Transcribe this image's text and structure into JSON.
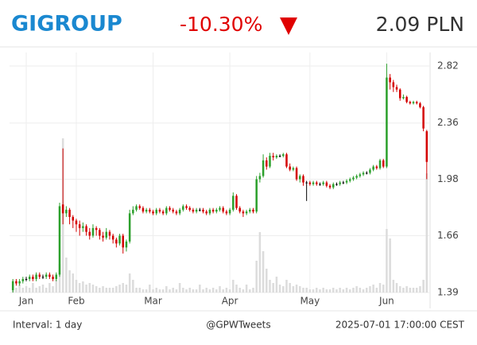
{
  "chart_data": {
    "type": "candlestick",
    "title": "GIGROUP",
    "change": "-10.30%",
    "price": "2.09 PLN",
    "interval": "Interval: 1 day",
    "source": "@GPWTweets",
    "timestamp": "2025-07-01 17:00:00 CEST",
    "log_scale": true,
    "grid": true,
    "up_color": "#2ca02c",
    "down_color": "#d40000",
    "flat_color": "#000000",
    "volume_color": "#dcdcdc",
    "xlim": [
      -1,
      125
    ],
    "xticks": [
      {
        "value": 4,
        "label": "Jan"
      },
      {
        "value": 19,
        "label": "Feb"
      },
      {
        "value": 42,
        "label": "Mar"
      },
      {
        "value": 65,
        "label": "Apr"
      },
      {
        "value": 89,
        "label": "May"
      },
      {
        "value": 112,
        "label": "Jun"
      }
    ],
    "ylim": [
      1.39,
      2.82
    ],
    "yticks": [
      1.39,
      1.66,
      1.98,
      2.36,
      2.82
    ],
    "volume_lim": [
      0,
      100
    ],
    "open": [
      1.4,
      1.44,
      1.43,
      1.44,
      1.45,
      1.45,
      1.46,
      1.45,
      1.47,
      1.46,
      1.46,
      1.47,
      1.46,
      1.45,
      1.47,
      1.83,
      1.78,
      1.8,
      1.76,
      1.74,
      1.72,
      1.7,
      1.71,
      1.68,
      1.66,
      1.7,
      1.69,
      1.66,
      1.65,
      1.68,
      1.66,
      1.64,
      1.62,
      1.66,
      1.6,
      1.63,
      1.78,
      1.8,
      1.82,
      1.81,
      1.79,
      1.8,
      1.79,
      1.78,
      1.8,
      1.79,
      1.78,
      1.81,
      1.8,
      1.79,
      1.78,
      1.8,
      1.82,
      1.81,
      1.8,
      1.79,
      1.8,
      1.8,
      1.79,
      1.78,
      1.8,
      1.79,
      1.8,
      1.81,
      1.79,
      1.78,
      1.8,
      1.88,
      1.81,
      1.79,
      1.78,
      1.79,
      1.8,
      1.79,
      1.98,
      2.0,
      2.1,
      2.06,
      2.13,
      2.12,
      2.13,
      2.13,
      2.14,
      2.06,
      2.04,
      2.05,
      1.98,
      2.0,
      1.96,
      1.96,
      1.95,
      1.96,
      1.95,
      1.95,
      1.96,
      1.94,
      1.93,
      1.95,
      1.95,
      1.96,
      1.96,
      1.97,
      1.98,
      1.99,
      2.0,
      2.01,
      2.02,
      2.02,
      2.04,
      2.06,
      2.05,
      2.1,
      2.06,
      2.72,
      2.68,
      2.64,
      2.62,
      2.55,
      2.56,
      2.52,
      2.51,
      2.52,
      2.51,
      2.48,
      2.3
    ],
    "high": [
      1.45,
      1.45,
      1.45,
      1.46,
      1.46,
      1.47,
      1.47,
      1.48,
      1.48,
      1.47,
      1.48,
      1.48,
      1.47,
      1.48,
      1.84,
      2.18,
      1.82,
      1.81,
      1.77,
      1.75,
      1.74,
      1.73,
      1.72,
      1.7,
      1.72,
      1.71,
      1.7,
      1.68,
      1.7,
      1.69,
      1.67,
      1.65,
      1.67,
      1.67,
      1.64,
      1.8,
      1.82,
      1.83,
      1.83,
      1.82,
      1.81,
      1.81,
      1.8,
      1.81,
      1.81,
      1.8,
      1.82,
      1.82,
      1.81,
      1.8,
      1.81,
      1.83,
      1.83,
      1.82,
      1.81,
      1.81,
      1.81,
      1.81,
      1.8,
      1.81,
      1.81,
      1.81,
      1.82,
      1.82,
      1.8,
      1.81,
      1.9,
      1.89,
      1.82,
      1.8,
      1.8,
      1.81,
      1.81,
      2.0,
      2.02,
      2.14,
      2.12,
      2.15,
      2.15,
      2.14,
      2.14,
      2.15,
      2.15,
      2.08,
      2.06,
      2.06,
      2.01,
      2.01,
      1.97,
      1.97,
      1.97,
      1.97,
      1.96,
      1.97,
      1.97,
      1.95,
      1.96,
      1.96,
      1.97,
      1.97,
      1.98,
      1.99,
      2.0,
      2.01,
      2.02,
      2.03,
      2.03,
      2.05,
      2.07,
      2.07,
      2.11,
      2.11,
      2.84,
      2.75,
      2.7,
      2.66,
      2.63,
      2.58,
      2.57,
      2.53,
      2.53,
      2.53,
      2.52,
      2.49,
      2.31
    ],
    "low": [
      1.39,
      1.42,
      1.42,
      1.43,
      1.44,
      1.44,
      1.44,
      1.44,
      1.45,
      1.45,
      1.45,
      1.45,
      1.44,
      1.44,
      1.46,
      1.72,
      1.76,
      1.72,
      1.7,
      1.68,
      1.66,
      1.68,
      1.66,
      1.64,
      1.65,
      1.66,
      1.64,
      1.63,
      1.64,
      1.64,
      1.62,
      1.6,
      1.61,
      1.57,
      1.58,
      1.62,
      1.77,
      1.79,
      1.8,
      1.78,
      1.78,
      1.78,
      1.77,
      1.77,
      1.78,
      1.77,
      1.77,
      1.79,
      1.78,
      1.77,
      1.77,
      1.79,
      1.8,
      1.79,
      1.78,
      1.78,
      1.79,
      1.78,
      1.77,
      1.77,
      1.78,
      1.78,
      1.79,
      1.78,
      1.77,
      1.77,
      1.79,
      1.8,
      1.78,
      1.76,
      1.77,
      1.78,
      1.78,
      1.78,
      1.96,
      1.99,
      2.04,
      2.05,
      2.1,
      2.11,
      2.12,
      2.12,
      2.05,
      2.03,
      2.03,
      1.97,
      1.96,
      1.94,
      1.85,
      1.94,
      1.94,
      1.94,
      1.94,
      1.94,
      1.93,
      1.92,
      1.92,
      1.94,
      1.94,
      1.95,
      1.95,
      1.96,
      1.97,
      1.98,
      1.99,
      2.0,
      2.01,
      2.01,
      2.03,
      2.04,
      2.04,
      2.05,
      2.05,
      2.62,
      2.6,
      2.6,
      2.53,
      2.54,
      2.51,
      2.5,
      2.5,
      2.5,
      2.47,
      2.3,
      1.98
    ],
    "close": [
      1.44,
      1.43,
      1.44,
      1.45,
      1.45,
      1.46,
      1.45,
      1.47,
      1.46,
      1.46,
      1.47,
      1.46,
      1.45,
      1.47,
      1.82,
      1.78,
      1.8,
      1.76,
      1.74,
      1.72,
      1.7,
      1.71,
      1.68,
      1.66,
      1.7,
      1.69,
      1.66,
      1.65,
      1.68,
      1.66,
      1.64,
      1.62,
      1.66,
      1.6,
      1.63,
      1.78,
      1.8,
      1.82,
      1.81,
      1.79,
      1.8,
      1.79,
      1.78,
      1.8,
      1.79,
      1.78,
      1.81,
      1.8,
      1.79,
      1.78,
      1.8,
      1.82,
      1.81,
      1.8,
      1.79,
      1.8,
      1.8,
      1.79,
      1.78,
      1.8,
      1.79,
      1.8,
      1.81,
      1.79,
      1.78,
      1.8,
      1.88,
      1.81,
      1.79,
      1.78,
      1.79,
      1.8,
      1.79,
      1.98,
      2.0,
      2.1,
      2.06,
      2.13,
      2.12,
      2.13,
      2.13,
      2.14,
      2.06,
      2.04,
      2.05,
      1.98,
      2.0,
      1.96,
      1.96,
      1.95,
      1.96,
      1.95,
      1.95,
      1.96,
      1.94,
      1.93,
      1.95,
      1.95,
      1.96,
      1.96,
      1.97,
      1.98,
      1.99,
      2.0,
      2.01,
      2.02,
      2.02,
      2.04,
      2.06,
      2.05,
      2.1,
      2.06,
      2.72,
      2.68,
      2.64,
      2.62,
      2.55,
      2.56,
      2.52,
      2.51,
      2.52,
      2.51,
      2.48,
      2.32,
      2.09
    ],
    "volume": [
      4,
      3,
      5,
      3,
      4,
      3,
      6,
      3,
      4,
      5,
      3,
      6,
      4,
      8,
      18,
      97,
      22,
      14,
      12,
      8,
      6,
      7,
      5,
      6,
      5,
      4,
      3,
      4,
      3,
      3,
      3,
      4,
      5,
      6,
      5,
      12,
      8,
      3,
      3,
      2,
      2,
      5,
      2,
      3,
      2,
      2,
      4,
      2,
      3,
      2,
      6,
      3,
      2,
      3,
      2,
      2,
      5,
      2,
      3,
      2,
      3,
      2,
      4,
      2,
      3,
      2,
      8,
      5,
      3,
      2,
      5,
      2,
      3,
      20,
      38,
      26,
      15,
      8,
      6,
      10,
      5,
      4,
      8,
      6,
      4,
      5,
      4,
      3,
      3,
      2,
      2,
      3,
      2,
      3,
      2,
      2,
      3,
      2,
      3,
      2,
      3,
      2,
      3,
      4,
      3,
      2,
      3,
      4,
      5,
      3,
      6,
      5,
      40,
      34,
      8,
      6,
      4,
      3,
      4,
      3,
      3,
      3,
      4,
      8,
      75
    ]
  }
}
